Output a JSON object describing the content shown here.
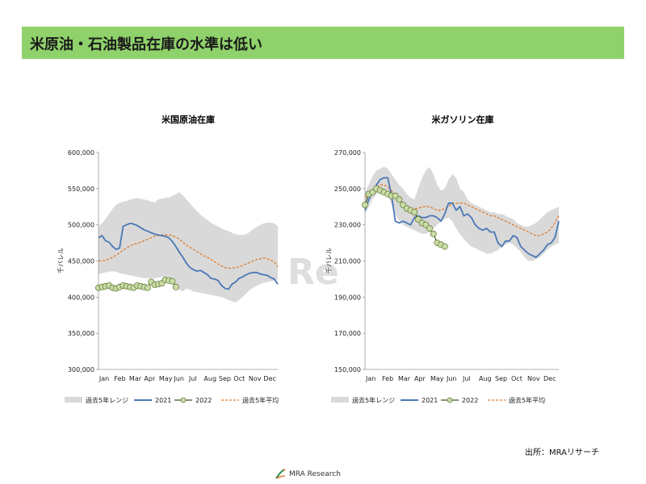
{
  "page": {
    "title": "米原油・石油製品在庫の水準は低い",
    "source": "出所：MRAリサーチ",
    "logo_text": "MRA Research",
    "watermark": "Re"
  },
  "colors": {
    "title_bar": "#8fd16b",
    "range_band": "#d9d9d9",
    "y2021": "#4a78b5",
    "y2022_line": "#3b5323",
    "y2022_marker_fill": "#c9dba8",
    "y2022_marker_stroke": "#6a7f3a",
    "avg5": "#e07a2a"
  },
  "chart_data": [
    {
      "type": "line",
      "title": "米国原油在庫",
      "ylabel": "千バレル",
      "ylim": [
        300000,
        600000
      ],
      "yticks": [
        300000,
        350000,
        400000,
        450000,
        500000,
        550000,
        600000
      ],
      "ytick_labels": [
        "300,000",
        "350,000",
        "400,000",
        "450,000",
        "500,000",
        "550,000",
        "600,000"
      ],
      "x_months": [
        "Jan",
        "Feb",
        "Mar",
        "Apr",
        "May",
        "Jun",
        "Jul",
        "Aug",
        "Sep",
        "Oct",
        "Nov",
        "Dec"
      ],
      "x_weeks": 52,
      "legend": [
        "過去5年レンジ",
        "2021",
        "2022",
        "過去5年平均"
      ],
      "legend_position": "bottom",
      "range_upper": [
        498,
        502,
        508,
        515,
        522,
        528,
        530,
        532,
        533,
        535,
        536,
        537,
        536,
        535,
        534,
        532,
        531,
        535,
        536,
        537,
        538,
        540,
        542,
        545,
        541,
        535,
        530,
        524,
        519,
        514,
        510,
        507,
        503,
        500,
        498,
        495,
        493,
        491,
        489,
        487,
        486,
        486,
        487,
        490,
        494,
        497,
        500,
        502,
        503,
        503,
        502,
        498
      ],
      "range_lower": [
        432,
        433,
        434,
        435,
        436,
        435,
        433,
        432,
        431,
        430,
        429,
        428,
        427,
        426,
        426,
        426,
        426,
        427,
        428,
        429,
        428,
        420,
        418,
        410,
        408,
        412,
        410,
        408,
        407,
        406,
        405,
        404,
        403,
        402,
        401,
        400,
        398,
        396,
        394,
        393,
        396,
        400,
        405,
        410,
        413,
        416,
        418,
        420,
        421,
        422,
        423,
        424
      ],
      "y2021": [
        482,
        485,
        478,
        476,
        470,
        466,
        468,
        498,
        500,
        502,
        501,
        499,
        496,
        493,
        491,
        489,
        487,
        486,
        485,
        484,
        482,
        477,
        470,
        462,
        455,
        447,
        441,
        438,
        436,
        437,
        434,
        431,
        426,
        425,
        423,
        416,
        412,
        411,
        418,
        421,
        426,
        428,
        431,
        433,
        434,
        434,
        432,
        431,
        430,
        427,
        425,
        418
      ],
      "y2022": [
        413,
        414,
        415,
        416,
        413,
        412,
        414,
        416,
        415,
        414,
        413,
        416,
        415,
        414,
        413,
        421,
        417,
        418,
        419,
        424,
        423,
        422,
        414
      ],
      "avg5": [
        450,
        450,
        451,
        453,
        455,
        458,
        461,
        465,
        468,
        471,
        473,
        474,
        476,
        478,
        480,
        482,
        484,
        485,
        486,
        486,
        486,
        485,
        483,
        480,
        476,
        472,
        469,
        466,
        463,
        460,
        457,
        455,
        452,
        449,
        446,
        443,
        441,
        440,
        440,
        441,
        442,
        444,
        446,
        448,
        450,
        452,
        453,
        454,
        453,
        451,
        449,
        442
      ]
    },
    {
      "type": "line",
      "title": "米ガソリン在庫",
      "ylabel": "千バレル",
      "ylim": [
        150000,
        270000
      ],
      "yticks": [
        150000,
        170000,
        190000,
        210000,
        230000,
        250000,
        270000
      ],
      "ytick_labels": [
        "150,000",
        "170,000",
        "190,000",
        "210,000",
        "230,000",
        "250,000",
        "270,000"
      ],
      "x_months": [
        "Jan",
        "Feb",
        "Mar",
        "Apr",
        "May",
        "Jun",
        "Jul",
        "Aug",
        "Sep",
        "Oct",
        "Nov",
        "Dec"
      ],
      "x_weeks": 52,
      "legend": [
        "過去5年レンジ",
        "2021",
        "2022",
        "過去5年平均"
      ],
      "legend_position": "bottom",
      "range_upper": [
        248,
        252,
        257,
        260,
        261,
        262,
        261,
        258,
        255,
        252,
        250,
        247,
        245,
        244,
        250,
        256,
        260,
        262,
        258,
        252,
        249,
        250,
        255,
        258,
        256,
        250,
        248,
        244,
        242,
        241,
        240,
        239,
        238,
        237,
        237,
        236,
        236,
        235,
        234,
        233,
        231,
        230,
        229,
        229,
        230,
        231,
        233,
        235,
        237,
        238,
        239,
        240
      ],
      "range_lower": [
        236,
        240,
        244,
        247,
        248,
        249,
        247,
        241,
        236,
        232,
        230,
        229,
        228,
        227,
        226,
        225,
        225,
        226,
        228,
        230,
        232,
        233,
        234,
        232,
        228,
        225,
        222,
        220,
        218,
        217,
        216,
        215,
        214,
        214,
        215,
        216,
        218,
        219,
        220,
        219,
        217,
        215,
        212,
        210,
        210,
        211,
        212,
        214,
        216,
        218,
        219,
        220
      ],
      "y2021": [
        238,
        244,
        248,
        252,
        255,
        256,
        256,
        246,
        232,
        231,
        232,
        231,
        230,
        234,
        235,
        234,
        234,
        235,
        235,
        234,
        232,
        236,
        242,
        242,
        238,
        240,
        235,
        236,
        234,
        230,
        228,
        227,
        228,
        226,
        226,
        220,
        218,
        221,
        221,
        224,
        223,
        218,
        216,
        214,
        213,
        212,
        214,
        216,
        219,
        220,
        223,
        232
      ],
      "y2022": [
        241,
        247,
        248,
        250,
        249,
        248,
        247,
        246,
        246,
        244,
        241,
        239,
        238,
        237,
        233,
        231,
        230,
        228,
        225,
        220,
        219,
        218
      ],
      "avg5": [
        245,
        247,
        249,
        251,
        252,
        252,
        251,
        249,
        246,
        243,
        241,
        240,
        239,
        239,
        239,
        240,
        240,
        240,
        239,
        238,
        238,
        239,
        240,
        242,
        242,
        242,
        242,
        241,
        240,
        239,
        238,
        237,
        236,
        235,
        235,
        234,
        233,
        232,
        231,
        230,
        229,
        228,
        227,
        226,
        225,
        224,
        224,
        225,
        226,
        228,
        231,
        235
      ]
    }
  ]
}
